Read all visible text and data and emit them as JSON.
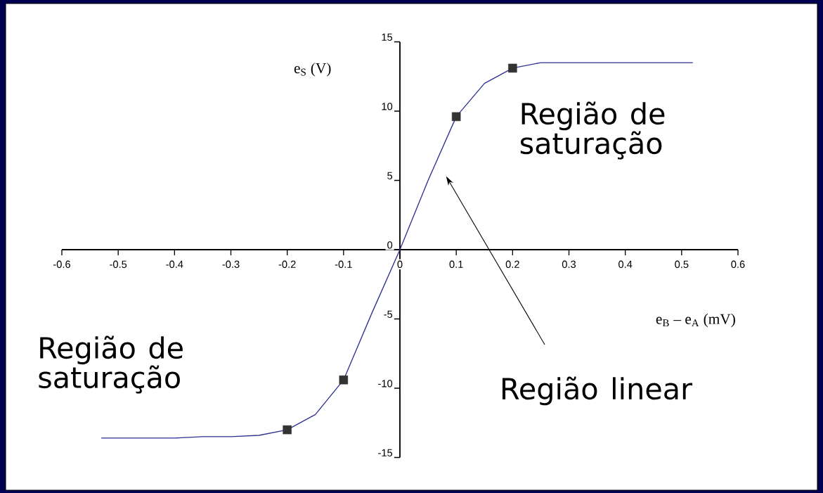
{
  "chart_data": {
    "type": "line",
    "xlabel": "e$_{B}$ – e$_{A}$ (mV)",
    "ylabel": "e$_{S}$ (V)",
    "xlim": [
      -0.6,
      0.6
    ],
    "ylim": [
      -15,
      15
    ],
    "xticks": [
      -0.6,
      -0.5,
      -0.4,
      -0.3,
      -0.2,
      -0.1,
      0,
      0.1,
      0.2,
      0.3,
      0.4,
      0.5,
      0.6
    ],
    "yticks": [
      -15,
      -10,
      -5,
      0,
      5,
      10,
      15
    ],
    "series": [
      {
        "type": "line",
        "color": "#2e3192",
        "marker": "none",
        "x": [
          -0.53,
          -0.45,
          -0.4,
          -0.35,
          -0.3,
          -0.25,
          -0.2,
          -0.15,
          -0.1,
          -0.05,
          0,
          0.05,
          0.1,
          0.15,
          0.2,
          0.25,
          0.3,
          0.4,
          0.52
        ],
        "values": [
          -13.6,
          -13.6,
          -13.6,
          -13.5,
          -13.5,
          -13.4,
          -13,
          -11.9,
          -9.4,
          -4.6,
          0,
          5,
          9.6,
          12,
          13.1,
          13.5,
          13.5,
          13.5,
          13.5
        ]
      },
      {
        "type": "scatter",
        "color": "#333333",
        "marker": "square",
        "x": [
          -0.2,
          -0.1,
          0.1,
          0.2
        ],
        "values": [
          -13,
          -9.4,
          9.6,
          13.1
        ]
      }
    ],
    "annotations": [
      "Região de saturação",
      "Região de saturação",
      "Região linear"
    ]
  }
}
